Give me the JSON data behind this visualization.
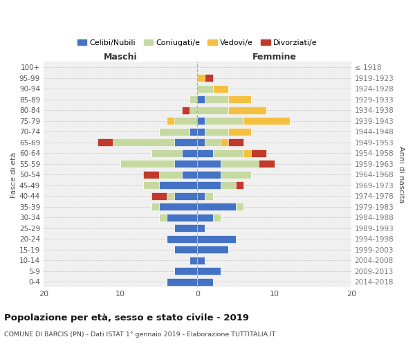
{
  "age_groups": [
    "0-4",
    "5-9",
    "10-14",
    "15-19",
    "20-24",
    "25-29",
    "30-34",
    "35-39",
    "40-44",
    "45-49",
    "50-54",
    "55-59",
    "60-64",
    "65-69",
    "70-74",
    "75-79",
    "80-84",
    "85-89",
    "90-94",
    "95-99",
    "100+"
  ],
  "birth_years": [
    "2014-2018",
    "2009-2013",
    "2004-2008",
    "1999-2003",
    "1994-1998",
    "1989-1993",
    "1984-1988",
    "1979-1983",
    "1974-1978",
    "1969-1973",
    "1964-1968",
    "1959-1963",
    "1954-1958",
    "1949-1953",
    "1944-1948",
    "1939-1943",
    "1934-1938",
    "1929-1933",
    "1924-1928",
    "1919-1923",
    "≤ 1918"
  ],
  "male_celibi": [
    4,
    3,
    1,
    3,
    4,
    3,
    4,
    5,
    3,
    5,
    2,
    3,
    2,
    3,
    1,
    0,
    0,
    0,
    0,
    0,
    0
  ],
  "male_coniugati": [
    0,
    0,
    0,
    0,
    0,
    0,
    1,
    1,
    1,
    2,
    3,
    7,
    4,
    8,
    4,
    3,
    1,
    1,
    0,
    0,
    0
  ],
  "male_vedovi": [
    0,
    0,
    0,
    0,
    0,
    0,
    0,
    0,
    0,
    0,
    0,
    0,
    0,
    0,
    0,
    1,
    0,
    0,
    0,
    0,
    0
  ],
  "male_divorziati": [
    0,
    0,
    0,
    0,
    0,
    0,
    0,
    0,
    2,
    0,
    2,
    0,
    0,
    2,
    0,
    0,
    1,
    0,
    0,
    0,
    0
  ],
  "female_nubili": [
    2,
    3,
    1,
    4,
    5,
    1,
    2,
    5,
    1,
    3,
    3,
    3,
    2,
    1,
    1,
    1,
    0,
    1,
    0,
    0,
    0
  ],
  "female_coniugate": [
    0,
    0,
    0,
    0,
    0,
    0,
    1,
    1,
    1,
    2,
    4,
    5,
    4,
    2,
    3,
    5,
    4,
    3,
    2,
    0,
    0
  ],
  "female_vedove": [
    0,
    0,
    0,
    0,
    0,
    0,
    0,
    0,
    0,
    0,
    0,
    0,
    1,
    1,
    3,
    6,
    5,
    3,
    2,
    1,
    0
  ],
  "female_divorziate": [
    0,
    0,
    0,
    0,
    0,
    0,
    0,
    0,
    0,
    1,
    0,
    2,
    2,
    2,
    0,
    0,
    0,
    0,
    0,
    1,
    0
  ],
  "color_celibi": "#4472c4",
  "color_coniugati": "#c5d9a0",
  "color_vedovi": "#f5c040",
  "color_divorziati": "#c0392b",
  "title": "Popolazione per età, sesso e stato civile - 2019",
  "subtitle": "COMUNE DI BARCIS (PN) - Dati ISTAT 1° gennaio 2019 - Elaborazione TUTTITALIA.IT",
  "legend_labels": [
    "Celibi/Nubili",
    "Coniugati/e",
    "Vedovi/e",
    "Divorziati/e"
  ],
  "label_maschi": "Maschi",
  "label_femmine": "Femmine",
  "label_fasce": "Fasce di età",
  "label_anni": "Anni di nascita",
  "xlim": 20,
  "bg_color": "#ffffff",
  "plot_bg": "#f0f0f0"
}
